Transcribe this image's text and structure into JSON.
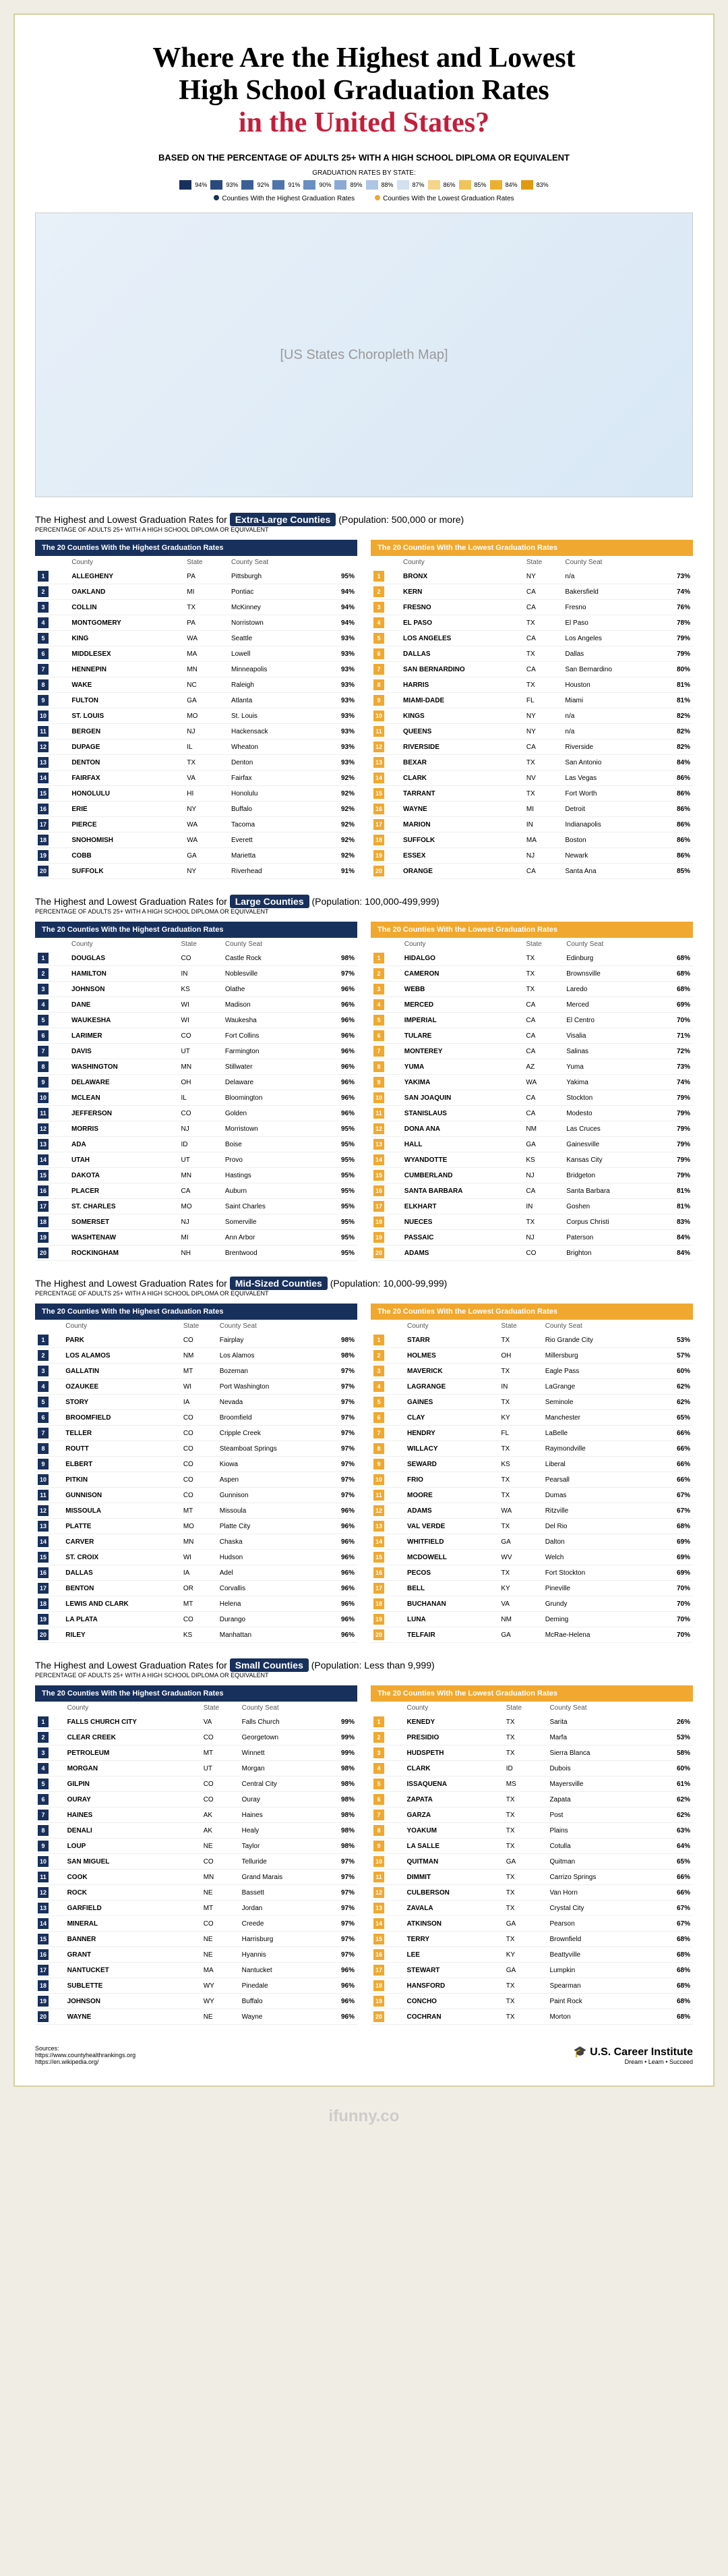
{
  "title_line1": "Where Are the Highest and Lowest",
  "title_line2": "High School Graduation Rates",
  "title_line3": "in the United States?",
  "subtitle": "BASED ON THE PERCENTAGE OF ADULTS 25+ WITH A HIGH SCHOOL DIPLOMA OR EQUIVALENT",
  "legend_title": "GRADUATION RATES BY STATE:",
  "legend_scale": [
    {
      "color": "#18305c",
      "label": "94%"
    },
    {
      "color": "#2a4a7c",
      "label": "93%"
    },
    {
      "color": "#3d5f96",
      "label": "92%"
    },
    {
      "color": "#5075ad",
      "label": "91%"
    },
    {
      "color": "#6a8fc2",
      "label": "90%"
    },
    {
      "color": "#8aaad5",
      "label": "89%"
    },
    {
      "color": "#aec5e5",
      "label": "88%"
    },
    {
      "color": "#d2e0f0",
      "label": "87%"
    },
    {
      "color": "#f5d58a",
      "label": "86%"
    },
    {
      "color": "#f0c45a",
      "label": "85%"
    },
    {
      "color": "#ecb030",
      "label": "84%"
    },
    {
      "color": "#e09a10",
      "label": "83%"
    }
  ],
  "legend_high": "Counties With the Highest Graduation Rates",
  "legend_low": "Counties With the Lowest Graduation Rates",
  "map_placeholder": "[US States Choropleth Map]",
  "section_subtitle": "PERCENTAGE OF ADULTS 25+ WITH A HIGH SCHOOL DIPLOMA OR EQUIVALENT",
  "headers": {
    "county": "County",
    "state": "State",
    "seat": "County Seat"
  },
  "high_table_title": "The 20 Counties With the Highest Graduation Rates",
  "low_table_title": "The 20 Counties With the Lowest Graduation Rates",
  "sections": [
    {
      "title_pre": "The Highest and Lowest Graduation Rates for ",
      "pill": "Extra-Large Counties",
      "title_post": " (Population: 500,000 or more)",
      "high": [
        [
          "ALLEGHENY",
          "PA",
          "Pittsburgh",
          "95%"
        ],
        [
          "OAKLAND",
          "MI",
          "Pontiac",
          "94%"
        ],
        [
          "COLLIN",
          "TX",
          "McKinney",
          "94%"
        ],
        [
          "MONTGOMERY",
          "PA",
          "Norristown",
          "94%"
        ],
        [
          "KING",
          "WA",
          "Seattle",
          "93%"
        ],
        [
          "MIDDLESEX",
          "MA",
          "Lowell",
          "93%"
        ],
        [
          "HENNEPIN",
          "MN",
          "Minneapolis",
          "93%"
        ],
        [
          "WAKE",
          "NC",
          "Raleigh",
          "93%"
        ],
        [
          "FULTON",
          "GA",
          "Atlanta",
          "93%"
        ],
        [
          "ST. LOUIS",
          "MO",
          "St. Louis",
          "93%"
        ],
        [
          "BERGEN",
          "NJ",
          "Hackensack",
          "93%"
        ],
        [
          "DUPAGE",
          "IL",
          "Wheaton",
          "93%"
        ],
        [
          "DENTON",
          "TX",
          "Denton",
          "93%"
        ],
        [
          "FAIRFAX",
          "VA",
          "Fairfax",
          "92%"
        ],
        [
          "HONOLULU",
          "HI",
          "Honolulu",
          "92%"
        ],
        [
          "ERIE",
          "NY",
          "Buffalo",
          "92%"
        ],
        [
          "PIERCE",
          "WA",
          "Tacoma",
          "92%"
        ],
        [
          "SNOHOMISH",
          "WA",
          "Everett",
          "92%"
        ],
        [
          "COBB",
          "GA",
          "Marietta",
          "92%"
        ],
        [
          "SUFFOLK",
          "NY",
          "Riverhead",
          "91%"
        ]
      ],
      "low": [
        [
          "BRONX",
          "NY",
          "n/a",
          "73%"
        ],
        [
          "KERN",
          "CA",
          "Bakersfield",
          "74%"
        ],
        [
          "FRESNO",
          "CA",
          "Fresno",
          "76%"
        ],
        [
          "EL PASO",
          "TX",
          "El Paso",
          "78%"
        ],
        [
          "LOS ANGELES",
          "CA",
          "Los Angeles",
          "79%"
        ],
        [
          "DALLAS",
          "TX",
          "Dallas",
          "79%"
        ],
        [
          "SAN BERNARDINO",
          "CA",
          "San Bernardino",
          "80%"
        ],
        [
          "HARRIS",
          "TX",
          "Houston",
          "81%"
        ],
        [
          "MIAMI-DADE",
          "FL",
          "Miami",
          "81%"
        ],
        [
          "KINGS",
          "NY",
          "n/a",
          "82%"
        ],
        [
          "QUEENS",
          "NY",
          "n/a",
          "82%"
        ],
        [
          "RIVERSIDE",
          "CA",
          "Riverside",
          "82%"
        ],
        [
          "BEXAR",
          "TX",
          "San Antonio",
          "84%"
        ],
        [
          "CLARK",
          "NV",
          "Las Vegas",
          "86%"
        ],
        [
          "TARRANT",
          "TX",
          "Fort Worth",
          "86%"
        ],
        [
          "WAYNE",
          "MI",
          "Detroit",
          "86%"
        ],
        [
          "MARION",
          "IN",
          "Indianapolis",
          "86%"
        ],
        [
          "SUFFOLK",
          "MA",
          "Boston",
          "86%"
        ],
        [
          "ESSEX",
          "NJ",
          "Newark",
          "86%"
        ],
        [
          "ORANGE",
          "CA",
          "Santa Ana",
          "85%"
        ]
      ]
    },
    {
      "title_pre": "The Highest and Lowest Graduation Rates for ",
      "pill": "Large Counties",
      "title_post": " (Population: 100,000-499,999)",
      "high": [
        [
          "DOUGLAS",
          "CO",
          "Castle Rock",
          "98%"
        ],
        [
          "HAMILTON",
          "IN",
          "Noblesville",
          "97%"
        ],
        [
          "JOHNSON",
          "KS",
          "Olathe",
          "96%"
        ],
        [
          "DANE",
          "WI",
          "Madison",
          "96%"
        ],
        [
          "WAUKESHA",
          "WI",
          "Waukesha",
          "96%"
        ],
        [
          "LARIMER",
          "CO",
          "Fort Collins",
          "96%"
        ],
        [
          "DAVIS",
          "UT",
          "Farmington",
          "96%"
        ],
        [
          "WASHINGTON",
          "MN",
          "Stillwater",
          "96%"
        ],
        [
          "DELAWARE",
          "OH",
          "Delaware",
          "96%"
        ],
        [
          "MCLEAN",
          "IL",
          "Bloomington",
          "96%"
        ],
        [
          "JEFFERSON",
          "CO",
          "Golden",
          "96%"
        ],
        [
          "MORRIS",
          "NJ",
          "Morristown",
          "95%"
        ],
        [
          "ADA",
          "ID",
          "Boise",
          "95%"
        ],
        [
          "UTAH",
          "UT",
          "Provo",
          "95%"
        ],
        [
          "DAKOTA",
          "MN",
          "Hastings",
          "95%"
        ],
        [
          "PLACER",
          "CA",
          "Auburn",
          "95%"
        ],
        [
          "ST. CHARLES",
          "MO",
          "Saint Charles",
          "95%"
        ],
        [
          "SOMERSET",
          "NJ",
          "Somerville",
          "95%"
        ],
        [
          "WASHTENAW",
          "MI",
          "Ann Arbor",
          "95%"
        ],
        [
          "ROCKINGHAM",
          "NH",
          "Brentwood",
          "95%"
        ]
      ],
      "low": [
        [
          "HIDALGO",
          "TX",
          "Edinburg",
          "68%"
        ],
        [
          "CAMERON",
          "TX",
          "Brownsville",
          "68%"
        ],
        [
          "WEBB",
          "TX",
          "Laredo",
          "68%"
        ],
        [
          "MERCED",
          "CA",
          "Merced",
          "69%"
        ],
        [
          "IMPERIAL",
          "CA",
          "El Centro",
          "70%"
        ],
        [
          "TULARE",
          "CA",
          "Visalia",
          "71%"
        ],
        [
          "MONTEREY",
          "CA",
          "Salinas",
          "72%"
        ],
        [
          "YUMA",
          "AZ",
          "Yuma",
          "73%"
        ],
        [
          "YAKIMA",
          "WA",
          "Yakima",
          "74%"
        ],
        [
          "SAN JOAQUIN",
          "CA",
          "Stockton",
          "79%"
        ],
        [
          "STANISLAUS",
          "CA",
          "Modesto",
          "79%"
        ],
        [
          "DONA ANA",
          "NM",
          "Las Cruces",
          "79%"
        ],
        [
          "HALL",
          "GA",
          "Gainesville",
          "79%"
        ],
        [
          "WYANDOTTE",
          "KS",
          "Kansas City",
          "79%"
        ],
        [
          "CUMBERLAND",
          "NJ",
          "Bridgeton",
          "79%"
        ],
        [
          "SANTA BARBARA",
          "CA",
          "Santa Barbara",
          "81%"
        ],
        [
          "ELKHART",
          "IN",
          "Goshen",
          "81%"
        ],
        [
          "NUECES",
          "TX",
          "Corpus Christi",
          "83%"
        ],
        [
          "PASSAIC",
          "NJ",
          "Paterson",
          "84%"
        ],
        [
          "ADAMS",
          "CO",
          "Brighton",
          "84%"
        ]
      ]
    },
    {
      "title_pre": "The Highest and Lowest Graduation Rates for ",
      "pill": "Mid-Sized Counties",
      "title_post": " (Population: 10,000-99,999)",
      "high": [
        [
          "PARK",
          "CO",
          "Fairplay",
          "98%"
        ],
        [
          "LOS ALAMOS",
          "NM",
          "Los Alamos",
          "98%"
        ],
        [
          "GALLATIN",
          "MT",
          "Bozeman",
          "97%"
        ],
        [
          "OZAUKEE",
          "WI",
          "Port Washington",
          "97%"
        ],
        [
          "STORY",
          "IA",
          "Nevada",
          "97%"
        ],
        [
          "BROOMFIELD",
          "CO",
          "Broomfield",
          "97%"
        ],
        [
          "TELLER",
          "CO",
          "Cripple Creek",
          "97%"
        ],
        [
          "ROUTT",
          "CO",
          "Steamboat Springs",
          "97%"
        ],
        [
          "ELBERT",
          "CO",
          "Kiowa",
          "97%"
        ],
        [
          "PITKIN",
          "CO",
          "Aspen",
          "97%"
        ],
        [
          "GUNNISON",
          "CO",
          "Gunnison",
          "97%"
        ],
        [
          "MISSOULA",
          "MT",
          "Missoula",
          "96%"
        ],
        [
          "PLATTE",
          "MO",
          "Platte City",
          "96%"
        ],
        [
          "CARVER",
          "MN",
          "Chaska",
          "96%"
        ],
        [
          "ST. CROIX",
          "WI",
          "Hudson",
          "96%"
        ],
        [
          "DALLAS",
          "IA",
          "Adel",
          "96%"
        ],
        [
          "BENTON",
          "OR",
          "Corvallis",
          "96%"
        ],
        [
          "LEWIS AND CLARK",
          "MT",
          "Helena",
          "96%"
        ],
        [
          "LA PLATA",
          "CO",
          "Durango",
          "96%"
        ],
        [
          "RILEY",
          "KS",
          "Manhattan",
          "96%"
        ]
      ],
      "low": [
        [
          "STARR",
          "TX",
          "Rio Grande City",
          "53%"
        ],
        [
          "HOLMES",
          "OH",
          "Millersburg",
          "57%"
        ],
        [
          "MAVERICK",
          "TX",
          "Eagle Pass",
          "60%"
        ],
        [
          "LAGRANGE",
          "IN",
          "LaGrange",
          "62%"
        ],
        [
          "GAINES",
          "TX",
          "Seminole",
          "62%"
        ],
        [
          "CLAY",
          "KY",
          "Manchester",
          "65%"
        ],
        [
          "HENDRY",
          "FL",
          "LaBelle",
          "66%"
        ],
        [
          "WILLACY",
          "TX",
          "Raymondville",
          "66%"
        ],
        [
          "SEWARD",
          "KS",
          "Liberal",
          "66%"
        ],
        [
          "FRIO",
          "TX",
          "Pearsall",
          "66%"
        ],
        [
          "MOORE",
          "TX",
          "Dumas",
          "67%"
        ],
        [
          "ADAMS",
          "WA",
          "Ritzville",
          "67%"
        ],
        [
          "VAL VERDE",
          "TX",
          "Del Rio",
          "68%"
        ],
        [
          "WHITFIELD",
          "GA",
          "Dalton",
          "69%"
        ],
        [
          "MCDOWELL",
          "WV",
          "Welch",
          "69%"
        ],
        [
          "PECOS",
          "TX",
          "Fort Stockton",
          "69%"
        ],
        [
          "BELL",
          "KY",
          "Pineville",
          "70%"
        ],
        [
          "BUCHANAN",
          "VA",
          "Grundy",
          "70%"
        ],
        [
          "LUNA",
          "NM",
          "Deming",
          "70%"
        ],
        [
          "TELFAIR",
          "GA",
          "McRae-Helena",
          "70%"
        ]
      ]
    },
    {
      "title_pre": "The Highest and Lowest Graduation Rates for ",
      "pill": "Small Counties",
      "title_post": " (Population: Less than 9,999)",
      "high": [
        [
          "FALLS CHURCH CITY",
          "VA",
          "Falls Church",
          "99%"
        ],
        [
          "CLEAR CREEK",
          "CO",
          "Georgetown",
          "99%"
        ],
        [
          "PETROLEUM",
          "MT",
          "Winnett",
          "99%"
        ],
        [
          "MORGAN",
          "UT",
          "Morgan",
          "98%"
        ],
        [
          "GILPIN",
          "CO",
          "Central City",
          "98%"
        ],
        [
          "OURAY",
          "CO",
          "Ouray",
          "98%"
        ],
        [
          "HAINES",
          "AK",
          "Haines",
          "98%"
        ],
        [
          "DENALI",
          "AK",
          "Healy",
          "98%"
        ],
        [
          "LOUP",
          "NE",
          "Taylor",
          "98%"
        ],
        [
          "SAN MIGUEL",
          "CO",
          "Telluride",
          "97%"
        ],
        [
          "COOK",
          "MN",
          "Grand Marais",
          "97%"
        ],
        [
          "ROCK",
          "NE",
          "Bassett",
          "97%"
        ],
        [
          "GARFIELD",
          "MT",
          "Jordan",
          "97%"
        ],
        [
          "MINERAL",
          "CO",
          "Creede",
          "97%"
        ],
        [
          "BANNER",
          "NE",
          "Harrisburg",
          "97%"
        ],
        [
          "GRANT",
          "NE",
          "Hyannis",
          "97%"
        ],
        [
          "NANTUCKET",
          "MA",
          "Nantucket",
          "96%"
        ],
        [
          "SUBLETTE",
          "WY",
          "Pinedale",
          "96%"
        ],
        [
          "JOHNSON",
          "WY",
          "Buffalo",
          "96%"
        ],
        [
          "WAYNE",
          "NE",
          "Wayne",
          "96%"
        ]
      ],
      "low": [
        [
          "KENEDY",
          "TX",
          "Sarita",
          "26%"
        ],
        [
          "PRESIDIO",
          "TX",
          "Marfa",
          "53%"
        ],
        [
          "HUDSPETH",
          "TX",
          "Sierra Blanca",
          "58%"
        ],
        [
          "CLARK",
          "ID",
          "Dubois",
          "60%"
        ],
        [
          "ISSAQUENA",
          "MS",
          "Mayersville",
          "61%"
        ],
        [
          "ZAPATA",
          "TX",
          "Zapata",
          "62%"
        ],
        [
          "GARZA",
          "TX",
          "Post",
          "62%"
        ],
        [
          "YOAKUM",
          "TX",
          "Plains",
          "63%"
        ],
        [
          "LA SALLE",
          "TX",
          "Cotulla",
          "64%"
        ],
        [
          "QUITMAN",
          "GA",
          "Quitman",
          "65%"
        ],
        [
          "DIMMIT",
          "TX",
          "Carrizo Springs",
          "66%"
        ],
        [
          "CULBERSON",
          "TX",
          "Van Horn",
          "66%"
        ],
        [
          "ZAVALA",
          "TX",
          "Crystal City",
          "67%"
        ],
        [
          "ATKINSON",
          "GA",
          "Pearson",
          "67%"
        ],
        [
          "TERRY",
          "TX",
          "Brownfield",
          "68%"
        ],
        [
          "LEE",
          "KY",
          "Beattyville",
          "68%"
        ],
        [
          "STEWART",
          "GA",
          "Lumpkin",
          "68%"
        ],
        [
          "HANSFORD",
          "TX",
          "Spearman",
          "68%"
        ],
        [
          "CONCHO",
          "TX",
          "Paint Rock",
          "68%"
        ],
        [
          "COCHRAN",
          "TX",
          "Morton",
          "68%"
        ]
      ]
    }
  ],
  "footer": {
    "sources_label": "Sources:",
    "source1": "https://www.countyhealthrankings.org",
    "source2": "https://en.wikipedia.org/",
    "logo_main": "U.S. Career Institute",
    "logo_sub": "Dream • Learn • Succeed",
    "watermark": "ifunny.co"
  }
}
